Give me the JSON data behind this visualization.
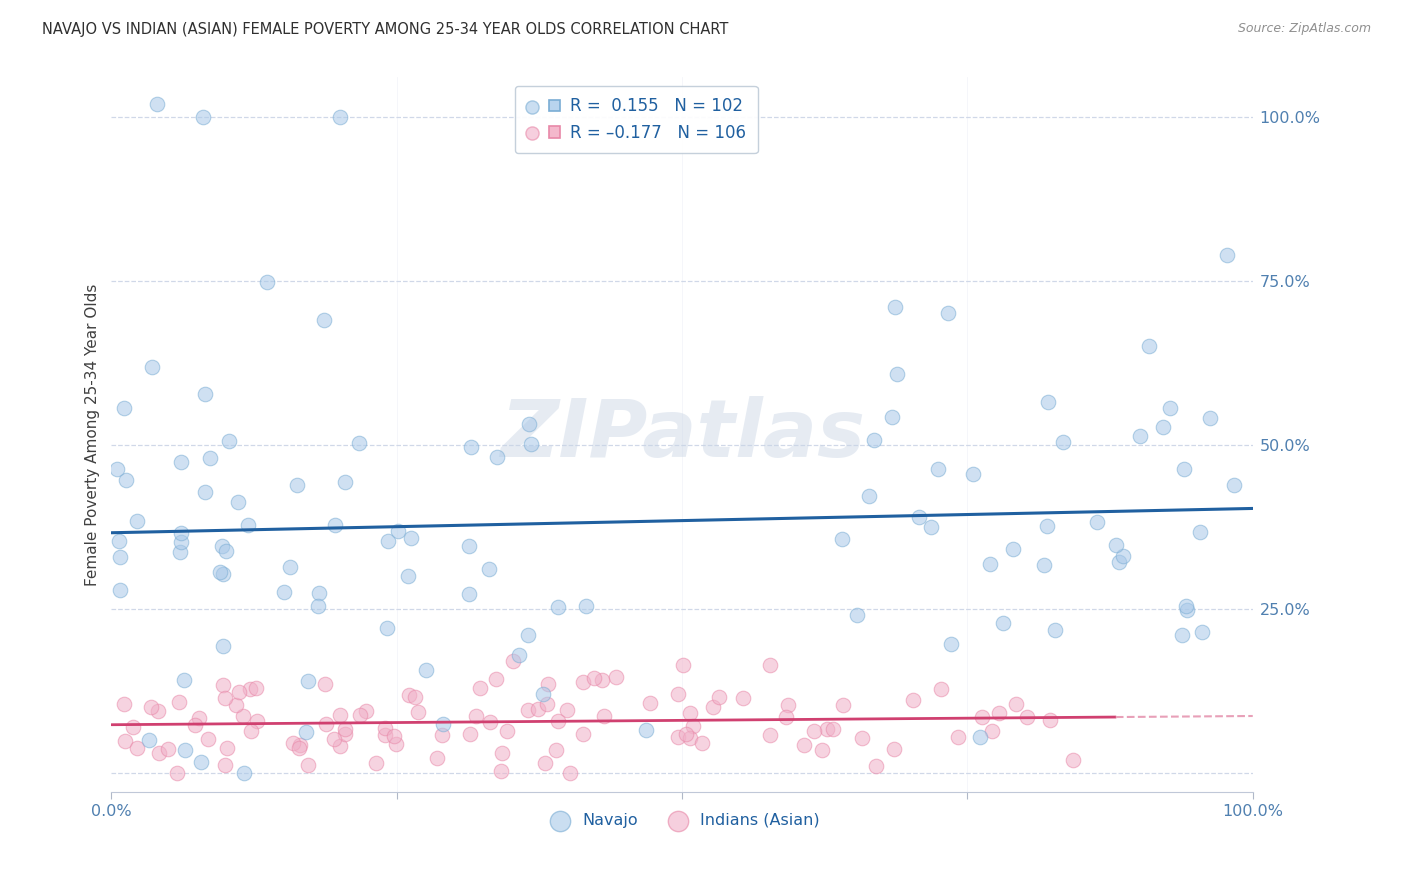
{
  "title": "NAVAJO VS INDIAN (ASIAN) FEMALE POVERTY AMONG 25-34 YEAR OLDS CORRELATION CHART",
  "source": "Source: ZipAtlas.com",
  "ylabel": "Female Poverty Among 25-34 Year Olds",
  "navajo_R": 0.155,
  "navajo_N": 102,
  "indian_R": -0.177,
  "indian_N": 106,
  "navajo_color": "#a8c8e8",
  "navajo_edge_color": "#7aadd4",
  "indian_color": "#f0b0c8",
  "indian_edge_color": "#e888a8",
  "navajo_line_color": "#2060a0",
  "indian_line_color": "#d04070",
  "indian_dash_color": "#e8a0b8",
  "legend_navajo": "Navajo",
  "legend_indian": "Indians (Asian)",
  "background_color": "#ffffff",
  "watermark": "ZIPatlas",
  "grid_color": "#d0d8e8",
  "tick_color": "#5080b0",
  "title_color": "#303030",
  "source_color": "#909090",
  "ylabel_color": "#404040"
}
